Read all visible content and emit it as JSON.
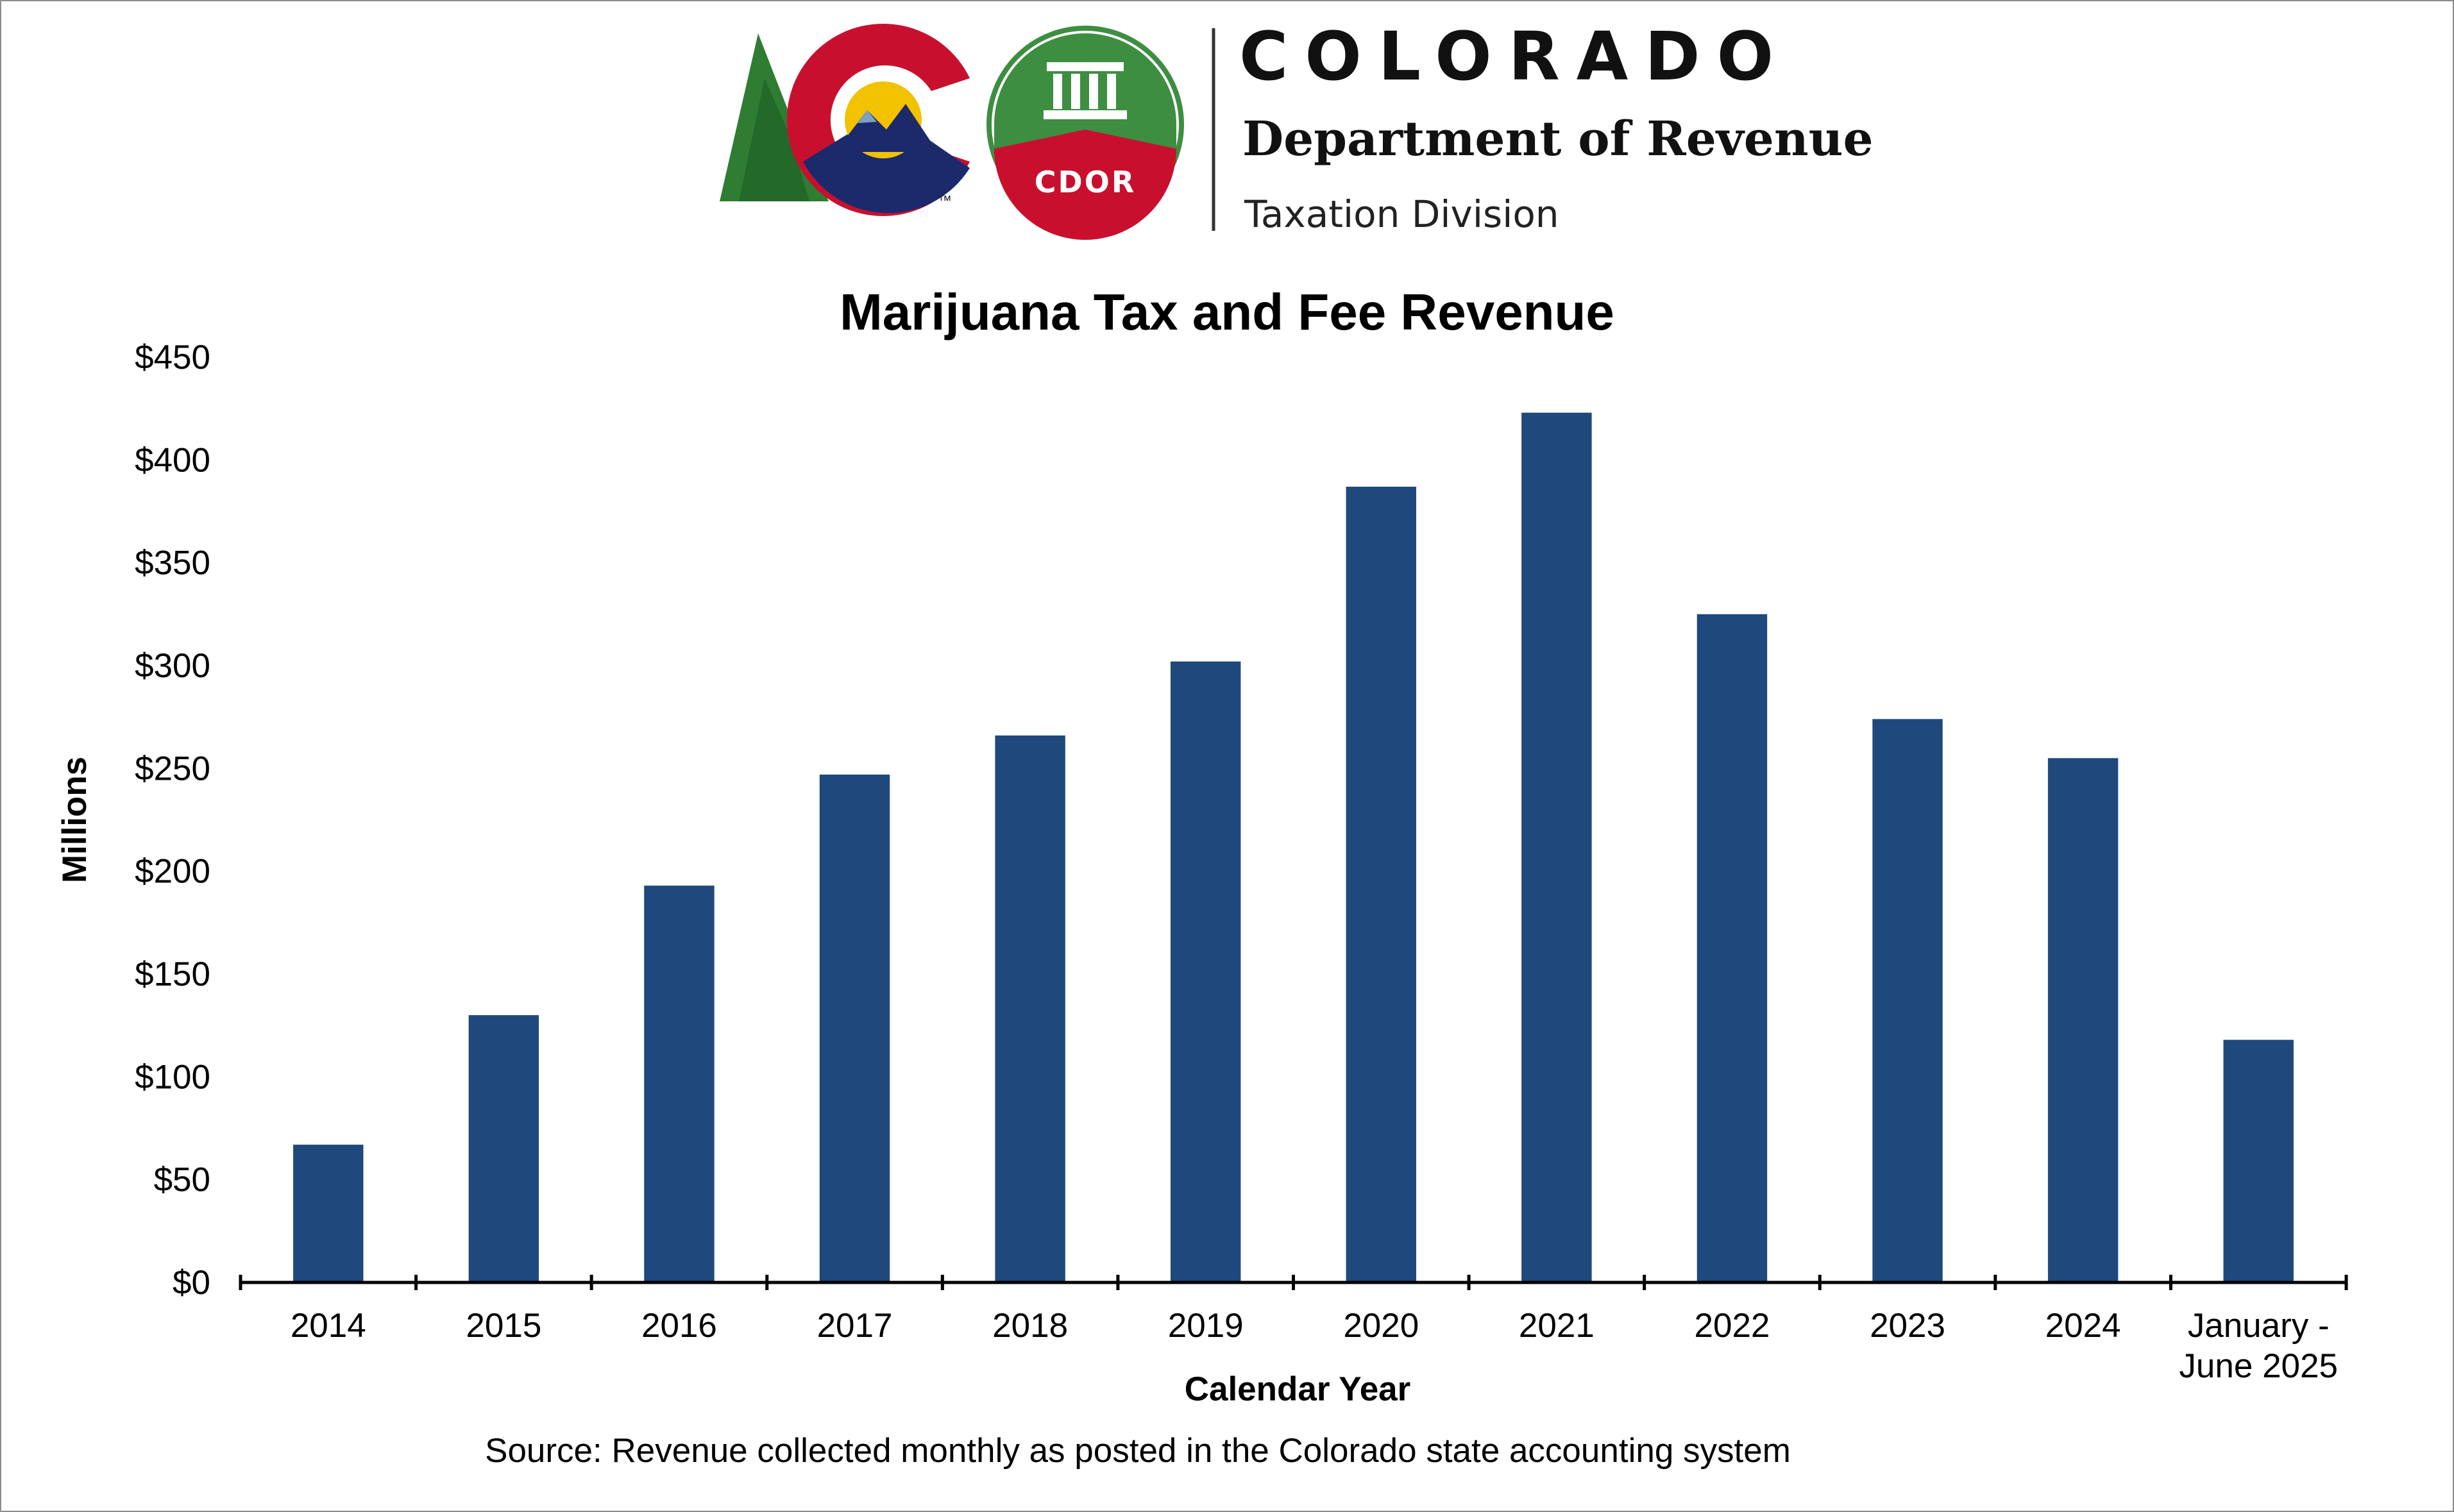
{
  "header": {
    "org_name": "COLORADO",
    "department": "Department of Revenue",
    "division": "Taxation Division",
    "seal_text": "CDOR",
    "trademark": "™"
  },
  "colors": {
    "bar": "#1F497D",
    "logo_green": "#2E7D32",
    "logo_red": "#C8102E",
    "logo_navy": "#1B2A6B",
    "logo_gold": "#F2C100",
    "seal_green": "#3E8E41",
    "seal_red": "#C8102E"
  },
  "chart_data": {
    "type": "bar",
    "title": "Marijuana Tax and Fee Revenue",
    "xlabel": "Calendar Year",
    "ylabel": "Millions",
    "categories": [
      "2014",
      "2015",
      "2016",
      "2017",
      "2018",
      "2019",
      "2020",
      "2021",
      "2022",
      "2023",
      "2024",
      "January - June 2025"
    ],
    "category_lines": [
      [
        "2014"
      ],
      [
        "2015"
      ],
      [
        "2016"
      ],
      [
        "2017"
      ],
      [
        "2018"
      ],
      [
        "2019"
      ],
      [
        "2020"
      ],
      [
        "2021"
      ],
      [
        "2022"
      ],
      [
        "2023"
      ],
      [
        "2024"
      ],
      [
        "January -",
        "June 2025"
      ]
    ],
    "values": [
      67,
      130,
      193,
      247,
      266,
      302,
      387,
      423,
      325,
      274,
      255,
      118
    ],
    "ylim": [
      0,
      450
    ],
    "yticks": [
      0,
      50,
      100,
      150,
      200,
      250,
      300,
      350,
      400,
      450
    ],
    "ytick_labels": [
      "$0",
      "$50",
      "$100",
      "$150",
      "$200",
      "$250",
      "$300",
      "$350",
      "$400",
      "$450"
    ],
    "grid": false,
    "legend": "none"
  },
  "source_note": "Source: Revenue collected monthly as posted in the Colorado state accounting system"
}
